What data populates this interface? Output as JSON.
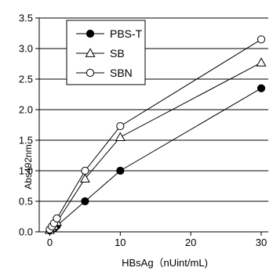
{
  "chart_data": {
    "type": "line",
    "xlabel": "HBsAg（nUint/mL)",
    "ylabel": "Abs492nm",
    "xlim": [
      -1.5,
      31
    ],
    "ylim": [
      0,
      3.5
    ],
    "xticks": [
      0,
      10,
      20,
      30
    ],
    "yticks": [
      0.0,
      0.5,
      1.0,
      1.5,
      2.0,
      2.5,
      3.0,
      3.5
    ],
    "ytick_labels": [
      "0.0",
      "0.5",
      "1.0",
      "1.5",
      "2.0",
      "2.5",
      "3.0",
      "3.5"
    ],
    "grid": "horizontal",
    "legend_position": "top-left",
    "series": [
      {
        "name": "PBS-T",
        "marker": "filled-circle",
        "x": [
          0,
          0.3,
          0.6,
          1,
          5,
          10,
          30
        ],
        "y": [
          0.02,
          0.04,
          0.06,
          0.1,
          0.5,
          1.0,
          2.35
        ]
      },
      {
        "name": "SB",
        "marker": "open-triangle",
        "x": [
          0,
          0.3,
          0.6,
          1,
          5,
          10,
          30
        ],
        "y": [
          0.03,
          0.07,
          0.1,
          0.16,
          0.87,
          1.55,
          2.77
        ]
      },
      {
        "name": "SBN",
        "marker": "open-circle",
        "x": [
          0,
          0.3,
          0.6,
          1,
          5,
          10,
          30
        ],
        "y": [
          0.04,
          0.09,
          0.14,
          0.22,
          1.0,
          1.73,
          3.15
        ]
      }
    ]
  }
}
